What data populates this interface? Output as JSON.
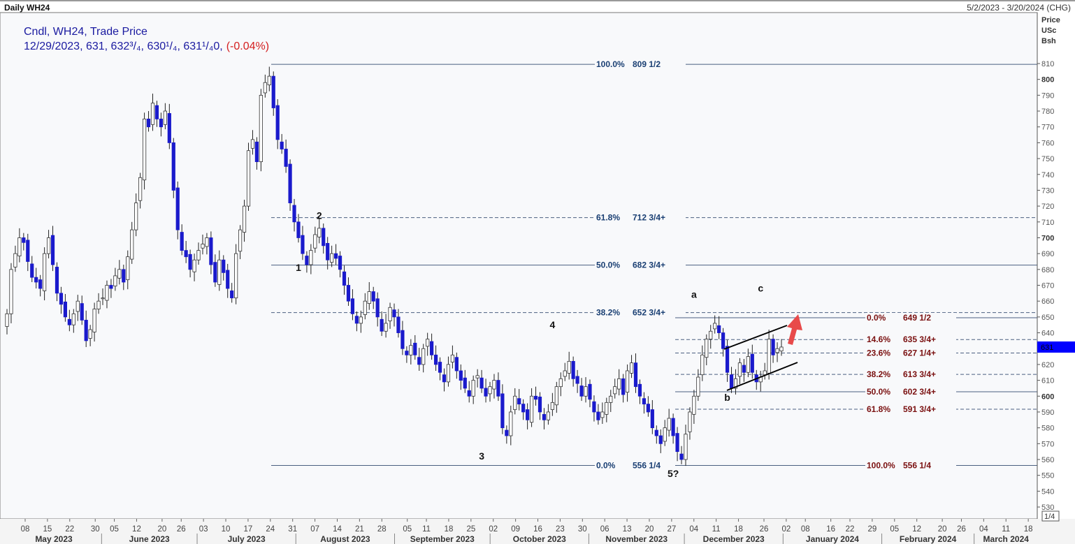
{
  "header": {
    "title": "Daily WH24",
    "range": "5/2/2023 - 3/20/2024 (CHG)"
  },
  "legend": {
    "line1": "Cndl, WH24, Trade Price",
    "line2": "12/29/2023, 631, 632³/₄, 630¹/₄, 631¹/₄0,",
    "change": "(-0.04%)"
  },
  "axis_units": [
    "Price",
    "USc",
    "Bsh"
  ],
  "last_price_label": "631",
  "scale_label": "1/4",
  "colors": {
    "down": "#1a1acc",
    "up": "#ffffff",
    "fib_left": "#1a3f73",
    "fib_right": "#7a1010",
    "arrow": "#e84a4a",
    "marker": "#0000ff"
  },
  "chart_data": {
    "type": "candlestick",
    "title": "Daily WH24",
    "ylabel": "Price USc Bsh",
    "ylim": [
      525,
      815
    ],
    "yticks": [
      530,
      540,
      550,
      560,
      570,
      580,
      590,
      600,
      610,
      620,
      630,
      640,
      650,
      660,
      670,
      680,
      690,
      700,
      710,
      720,
      730,
      740,
      750,
      760,
      770,
      780,
      790,
      800,
      810
    ],
    "date_range": [
      "2023-05-02",
      "2024-03-20"
    ],
    "close": [
      652,
      680,
      690,
      700,
      697,
      685,
      675,
      672,
      668,
      690,
      700,
      683,
      665,
      658,
      650,
      645,
      652,
      660,
      648,
      635,
      642,
      655,
      660,
      662,
      670,
      668,
      676,
      680,
      672,
      688,
      705,
      722,
      738,
      775,
      770,
      785,
      775,
      770,
      780,
      760,
      730,
      705,
      692,
      688,
      680,
      686,
      692,
      696,
      700,
      683,
      672,
      686,
      678,
      668,
      662,
      690,
      705,
      720,
      755,
      762,
      748,
      790,
      798,
      802,
      782,
      762,
      756,
      745,
      722,
      710,
      700,
      690,
      683,
      692,
      702,
      706,
      695,
      686,
      690,
      687,
      680,
      670,
      660,
      652,
      646,
      650,
      660,
      666,
      660,
      650,
      641,
      646,
      656,
      650,
      640,
      630,
      626,
      632,
      626,
      620,
      630,
      636,
      626,
      620,
      615,
      609,
      620,
      626,
      616,
      610,
      605,
      600,
      610,
      613,
      605,
      600,
      606,
      610,
      600,
      580,
      575,
      590,
      600,
      595,
      590,
      585,
      600,
      598,
      590,
      585,
      590,
      596,
      606,
      611,
      616,
      622,
      611,
      608,
      600,
      606,
      598,
      590,
      585,
      590,
      596,
      600,
      606,
      611,
      601,
      616,
      621,
      606,
      600,
      595,
      590,
      580,
      575,
      570,
      580,
      586,
      575,
      565,
      560,
      576,
      590,
      600,
      612,
      626,
      636,
      641,
      646,
      640,
      630,
      615,
      605,
      611,
      621,
      615,
      625,
      615,
      609,
      612,
      616,
      636,
      626,
      630,
      631
    ],
    "fib_left": [
      {
        "pct": "100.0%",
        "price": 809.5,
        "label": "809 1/2",
        "style": "solid"
      },
      {
        "pct": "61.8%",
        "price": 712.75,
        "label": "712 3/4+",
        "style": "dashed"
      },
      {
        "pct": "50.0%",
        "price": 682.75,
        "label": "682 3/4+",
        "style": "solid"
      },
      {
        "pct": "38.2%",
        "price": 652.75,
        "label": "652 3/4+",
        "style": "dashed"
      },
      {
        "pct": "0.0%",
        "price": 556.25,
        "label": "556 1/4",
        "style": "solid"
      }
    ],
    "fib_right": [
      {
        "pct": "0.0%",
        "price": 649.5,
        "label": "649 1/2",
        "style": "solid"
      },
      {
        "pct": "14.6%",
        "price": 635.75,
        "label": "635 3/4+",
        "style": "dashed"
      },
      {
        "pct": "23.6%",
        "price": 627.25,
        "label": "627 1/4+",
        "style": "dashed"
      },
      {
        "pct": "38.2%",
        "price": 613.75,
        "label": "613 3/4+",
        "style": "dashed"
      },
      {
        "pct": "50.0%",
        "price": 602.75,
        "label": "602 3/4+",
        "style": "solid"
      },
      {
        "pct": "61.8%",
        "price": 591.75,
        "label": "591 3/4+",
        "style": "dashed"
      },
      {
        "pct": "100.0%",
        "price": 556.25,
        "label": "556 1/4",
        "style": "solid"
      }
    ],
    "wave_labels": [
      {
        "text": "1",
        "date_index": 70,
        "price": 679
      },
      {
        "text": "2",
        "date_index": 75,
        "price": 712
      },
      {
        "text": "3",
        "date_index": 114,
        "price": 560
      },
      {
        "text": "4",
        "date_index": 131,
        "price": 643
      },
      {
        "text": "5?",
        "date_index": 160,
        "price": 549
      },
      {
        "text": "a",
        "date_index": 165,
        "price": 662
      },
      {
        "text": "b",
        "date_index": 173,
        "price": 597
      },
      {
        "text": "c",
        "date_index": 181,
        "price": 666
      }
    ],
    "date_ticks": [
      {
        "date": "2023-05-08",
        "label": "08"
      },
      {
        "date": "2023-05-15",
        "label": "15"
      },
      {
        "date": "2023-05-22",
        "label": "22"
      },
      {
        "date": "2023-05-30",
        "label": "30"
      },
      {
        "date": "2023-06-05",
        "label": "05"
      },
      {
        "date": "2023-06-12",
        "label": "12"
      },
      {
        "date": "2023-06-20",
        "label": "20"
      },
      {
        "date": "2023-06-26",
        "label": "26"
      },
      {
        "date": "2023-07-03",
        "label": "03"
      },
      {
        "date": "2023-07-10",
        "label": "10"
      },
      {
        "date": "2023-07-17",
        "label": "17"
      },
      {
        "date": "2023-07-24",
        "label": "24"
      },
      {
        "date": "2023-07-31",
        "label": "31"
      },
      {
        "date": "2023-08-07",
        "label": "07"
      },
      {
        "date": "2023-08-14",
        "label": "14"
      },
      {
        "date": "2023-08-21",
        "label": "21"
      },
      {
        "date": "2023-08-28",
        "label": "28"
      },
      {
        "date": "2023-09-05",
        "label": "05"
      },
      {
        "date": "2023-09-11",
        "label": "11"
      },
      {
        "date": "2023-09-18",
        "label": "18"
      },
      {
        "date": "2023-09-25",
        "label": "25"
      },
      {
        "date": "2023-10-02",
        "label": "02"
      },
      {
        "date": "2023-10-09",
        "label": "09"
      },
      {
        "date": "2023-10-16",
        "label": "16"
      },
      {
        "date": "2023-10-23",
        "label": "23"
      },
      {
        "date": "2023-10-30",
        "label": "30"
      },
      {
        "date": "2023-11-06",
        "label": "06"
      },
      {
        "date": "2023-11-13",
        "label": "13"
      },
      {
        "date": "2023-11-20",
        "label": "20"
      },
      {
        "date": "2023-11-27",
        "label": "27"
      },
      {
        "date": "2023-12-04",
        "label": "04"
      },
      {
        "date": "2023-12-11",
        "label": "11"
      },
      {
        "date": "2023-12-18",
        "label": "18"
      },
      {
        "date": "2023-12-26",
        "label": "26"
      },
      {
        "date": "2024-01-02",
        "label": "02"
      },
      {
        "date": "2024-01-08",
        "label": "08"
      },
      {
        "date": "2024-01-16",
        "label": "16"
      },
      {
        "date": "2024-01-22",
        "label": "22"
      },
      {
        "date": "2024-01-29",
        "label": "29"
      },
      {
        "date": "2024-02-05",
        "label": "05"
      },
      {
        "date": "2024-02-12",
        "label": "12"
      },
      {
        "date": "2024-02-20",
        "label": "20"
      },
      {
        "date": "2024-02-26",
        "label": "26"
      },
      {
        "date": "2024-03-04",
        "label": "04"
      },
      {
        "date": "2024-03-11",
        "label": "11"
      },
      {
        "date": "2024-03-18",
        "label": "18"
      }
    ],
    "months": [
      {
        "start": "2023-05-02",
        "end": "2023-06-01",
        "label": "May 2023"
      },
      {
        "start": "2023-06-01",
        "end": "2023-07-01",
        "label": "June 2023"
      },
      {
        "start": "2023-07-01",
        "end": "2023-08-01",
        "label": "July 2023"
      },
      {
        "start": "2023-08-01",
        "end": "2023-09-01",
        "label": "August 2023"
      },
      {
        "start": "2023-09-01",
        "end": "2023-10-01",
        "label": "September 2023"
      },
      {
        "start": "2023-10-01",
        "end": "2023-11-01",
        "label": "October 2023"
      },
      {
        "start": "2023-11-01",
        "end": "2023-12-01",
        "label": "November 2023"
      },
      {
        "start": "2023-12-01",
        "end": "2024-01-01",
        "label": "December 2023"
      },
      {
        "start": "2024-01-01",
        "end": "2024-02-01",
        "label": "January 2024"
      },
      {
        "start": "2024-02-01",
        "end": "2024-03-01",
        "label": "February 2024"
      },
      {
        "start": "2024-03-01",
        "end": "2024-03-21",
        "label": "March 2024"
      }
    ]
  }
}
